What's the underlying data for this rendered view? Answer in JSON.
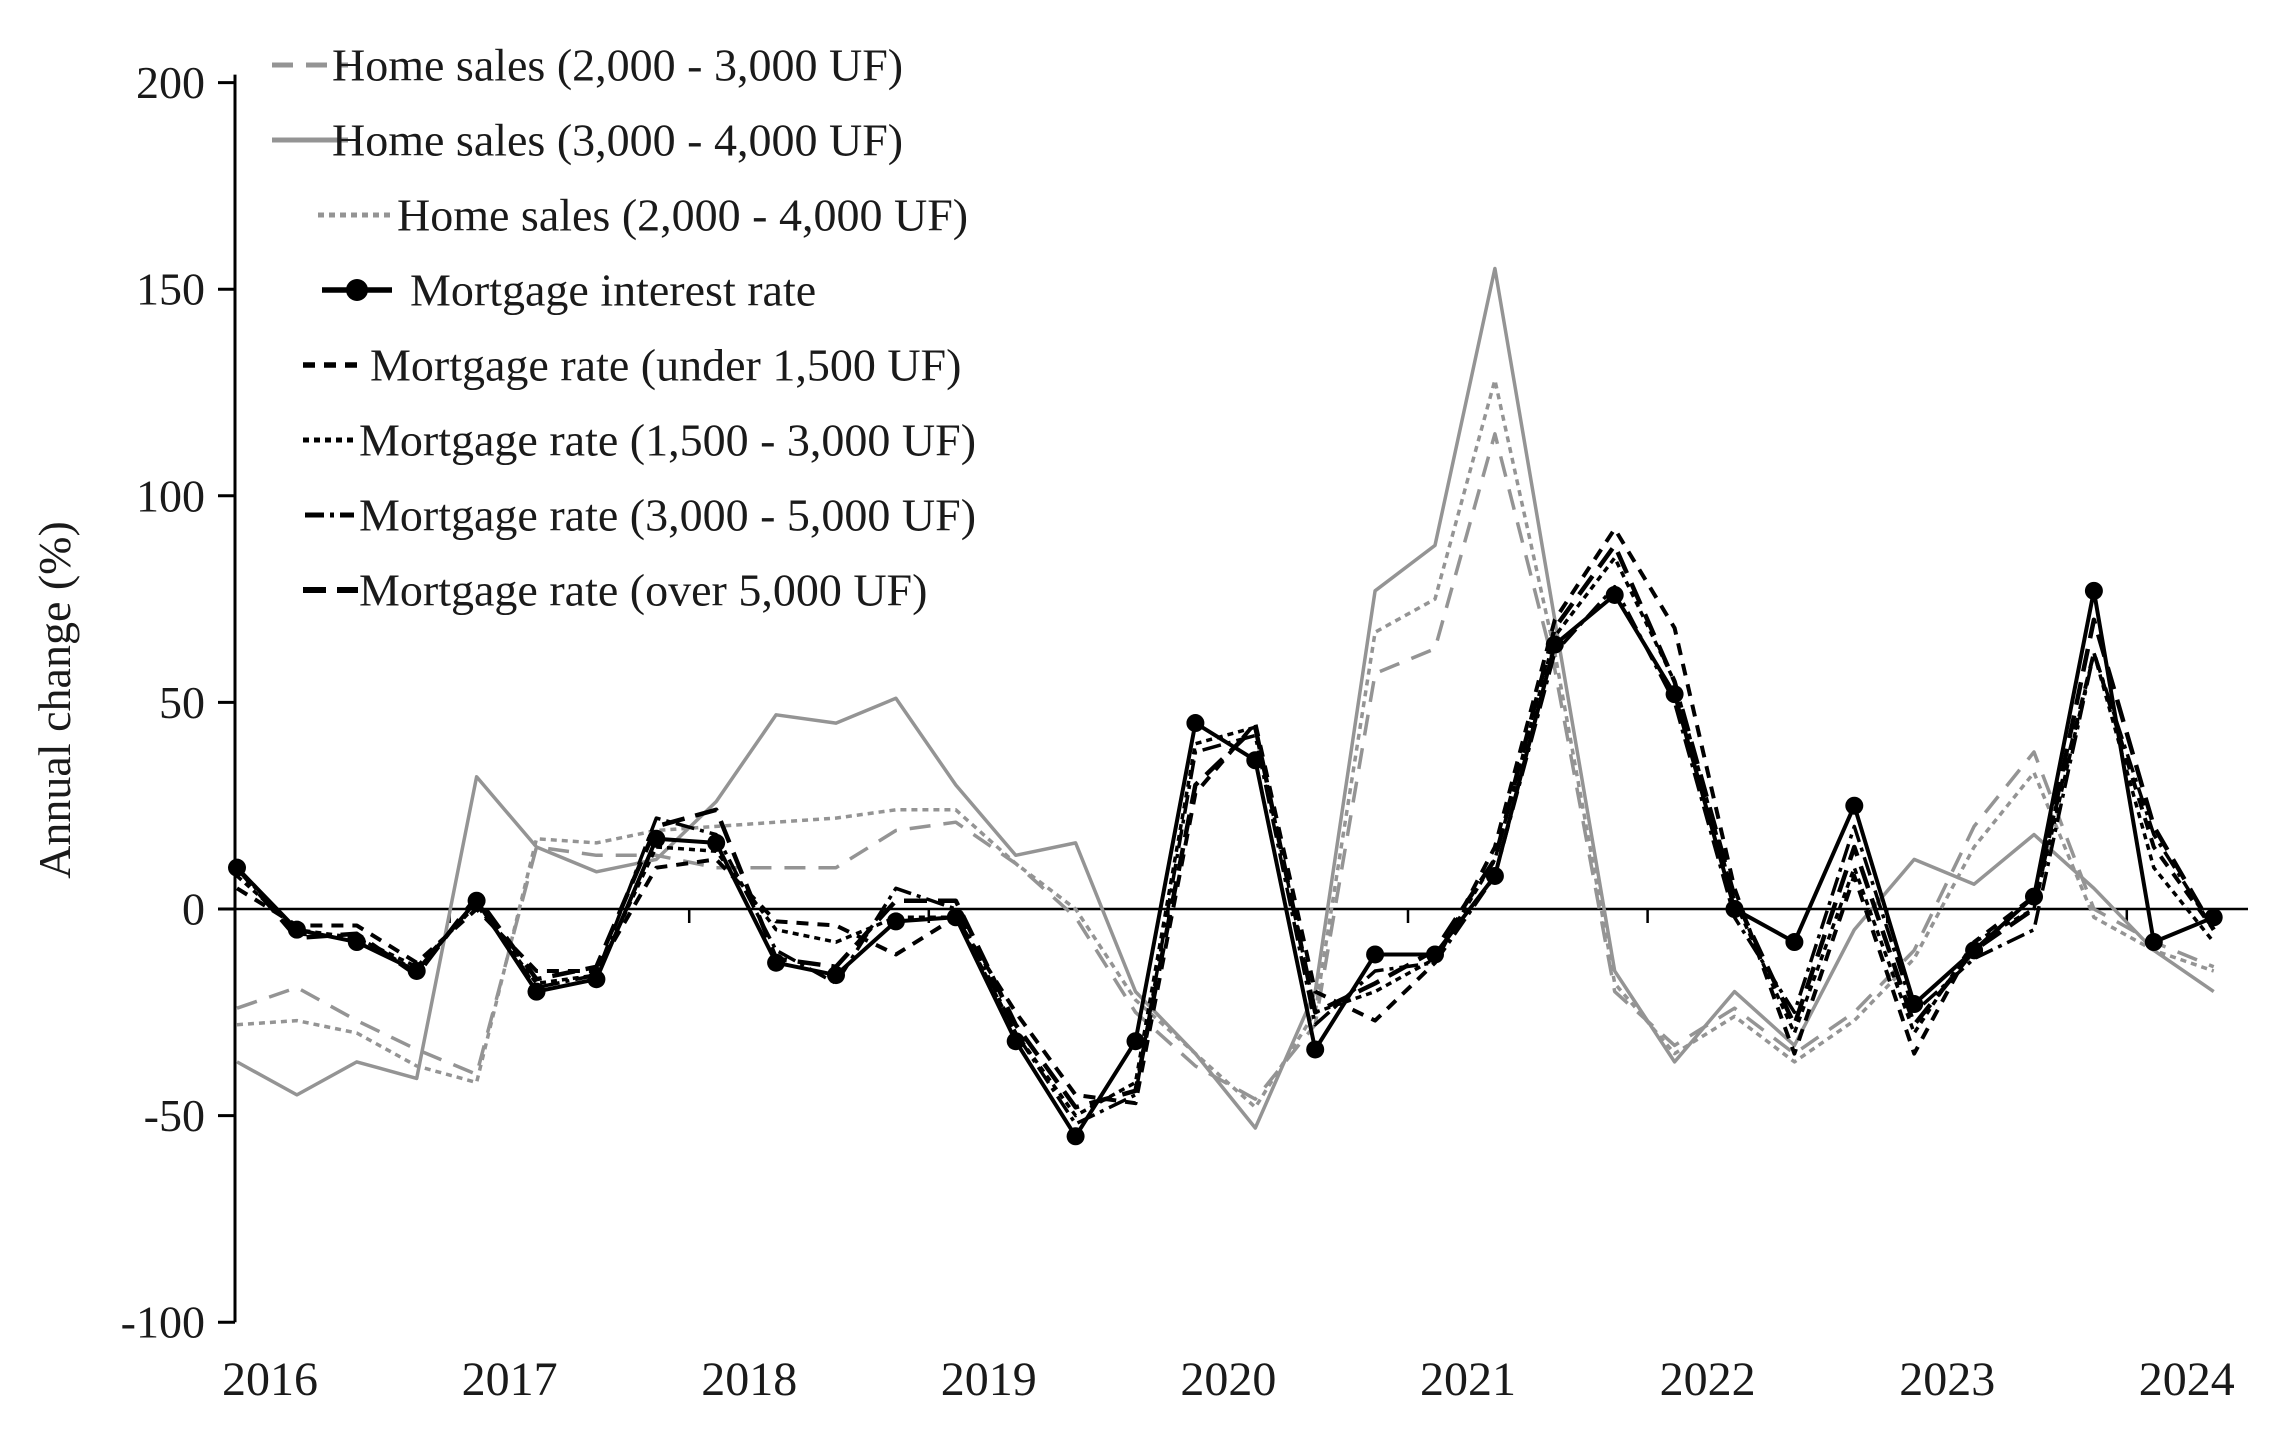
{
  "chart_data": {
    "type": "line",
    "title": "",
    "xlabel": "",
    "ylabel": "Annual change (%)",
    "ylim": [
      -100,
      200
    ],
    "yticks": [
      200,
      150,
      100,
      50,
      0,
      -50,
      -100
    ],
    "x_year_labels": [
      "2016",
      "2017",
      "2018",
      "2019",
      "2020",
      "2021",
      "2022",
      "2023",
      "2024"
    ],
    "x": [
      "2016Q1",
      "2016Q2",
      "2016Q3",
      "2016Q4",
      "2017Q1",
      "2017Q2",
      "2017Q3",
      "2017Q4",
      "2018Q1",
      "2018Q2",
      "2018Q3",
      "2018Q4",
      "2019Q1",
      "2019Q2",
      "2019Q3",
      "2019Q4",
      "2020Q1",
      "2020Q2",
      "2020Q3",
      "2020Q4",
      "2021Q1",
      "2021Q2",
      "2021Q3",
      "2021Q4",
      "2022Q1",
      "2022Q2",
      "2022Q3",
      "2022Q4",
      "2023Q1",
      "2023Q2",
      "2023Q3",
      "2023Q4",
      "2024Q1",
      "2024Q2"
    ],
    "grid": false,
    "legend_position": "top-left",
    "colors": {
      "black": "#000000",
      "gray": "#949494",
      "text": "#1a1a1a"
    },
    "series": [
      {
        "name": "Home sales (2,000 - 3,000 UF)",
        "color": "gray",
        "dash": "21 13",
        "width": 3.5,
        "markers": false,
        "values": [
          -24,
          -19,
          -27,
          -34,
          -40,
          15,
          13,
          13,
          10,
          10,
          10,
          19,
          21,
          11,
          -2,
          -25,
          -38,
          -46,
          -28,
          57,
          63,
          115,
          58,
          -20,
          -33,
          -24,
          -35,
          -25,
          -10,
          20,
          38,
          0,
          -8,
          -14
        ]
      },
      {
        "name": "Home sales (3,000 - 4,000 UF)",
        "color": "gray",
        "dash": "",
        "width": 3.5,
        "markers": false,
        "values": [
          -37,
          -45,
          -37,
          -41,
          32,
          15,
          9,
          12,
          26,
          47,
          45,
          51,
          30,
          13,
          16,
          -20,
          -35,
          -53,
          -20,
          77,
          88,
          155,
          70,
          -15,
          -37,
          -20,
          -33,
          -5,
          12,
          6,
          18,
          5,
          -10,
          -20
        ]
      },
      {
        "name": "Home sales (2,000 - 4,000 UF)",
        "color": "gray",
        "dash": "6 5",
        "width": 3.5,
        "markers": false,
        "values": [
          -28,
          -27,
          -30,
          -38,
          -42,
          17,
          16,
          19,
          20,
          21,
          22,
          24,
          24,
          11,
          0,
          -22,
          -35,
          -48,
          -25,
          67,
          75,
          128,
          62,
          -18,
          -35,
          -26,
          -37,
          -27,
          -12,
          15,
          33,
          -2,
          -10,
          -15
        ]
      },
      {
        "name": "Mortgage rate (under 1,500 UF)",
        "color": "black",
        "dash": "12 9",
        "width": 4,
        "markers": false,
        "values": [
          5,
          -4,
          -4,
          -13,
          0,
          -15,
          -15,
          10,
          12,
          -3,
          -4,
          -11,
          -2,
          -25,
          -45,
          -47,
          28,
          45,
          -20,
          -27,
          -13,
          15,
          70,
          92,
          68,
          5,
          -35,
          8,
          -35,
          -8,
          3,
          62,
          15,
          -5
        ]
      },
      {
        "name": "Mortgage rate (1,500 - 3,000 UF)",
        "color": "black",
        "dash": "6 5",
        "width": 3.5,
        "markers": false,
        "values": [
          8,
          -5,
          -7,
          -14,
          1,
          -18,
          -16,
          15,
          14,
          -5,
          -8,
          -2,
          -2,
          -30,
          -50,
          -42,
          40,
          44,
          -25,
          -20,
          -12,
          12,
          66,
          85,
          55,
          2,
          -30,
          10,
          -30,
          -8,
          0,
          62,
          10,
          -8
        ]
      },
      {
        "name": "Mortgage rate (3,000 - 5,000 UF)",
        "color": "black",
        "dash": "19 6 4 6",
        "width": 3.5,
        "markers": false,
        "values": [
          10,
          -6,
          -7,
          -15,
          2,
          -19,
          -16,
          22,
          18,
          -10,
          -18,
          5,
          0,
          -30,
          -52,
          -45,
          38,
          42,
          -28,
          -15,
          -13,
          8,
          62,
          78,
          50,
          -2,
          -25,
          20,
          -25,
          -12,
          -5,
          62,
          18,
          -5
        ]
      },
      {
        "name": "Mortgage rate (over 5,000 UF)",
        "color": "black",
        "dash": "23 11",
        "width": 4.5,
        "markers": false,
        "values": [
          10,
          -7,
          -6,
          -16,
          3,
          -17,
          -14,
          20,
          24,
          -12,
          -14,
          2,
          2,
          -28,
          -48,
          -44,
          30,
          44,
          -25,
          -18,
          -10,
          12,
          68,
          88,
          55,
          3,
          -28,
          15,
          -28,
          -10,
          0,
          70,
          20,
          -5
        ]
      },
      {
        "name": "Mortgage interest rate",
        "color": "black",
        "dash": "",
        "width": 4,
        "markers": true,
        "values": [
          10,
          -5,
          -8,
          -15,
          2,
          -20,
          -17,
          17,
          16,
          -13,
          -16,
          -3,
          -2,
          -32,
          -55,
          -32,
          45,
          36,
          -34,
          -11,
          -11,
          8,
          64,
          76,
          52,
          0,
          -8,
          25,
          -23,
          -10,
          3,
          77,
          -8,
          -2
        ]
      }
    ],
    "legend_order": [
      "Home sales (2,000 - 3,000 UF)",
      "Home sales (3,000 - 4,000 UF)",
      "Home sales (2,000 - 4,000 UF)",
      "Mortgage interest rate",
      "Mortgage rate (under 1,500 UF)",
      "Mortgage rate (1,500 - 3,000 UF)",
      "Mortgage rate (3,000 - 5,000 UF)",
      "Mortgage rate (over 5,000 UF)"
    ]
  }
}
